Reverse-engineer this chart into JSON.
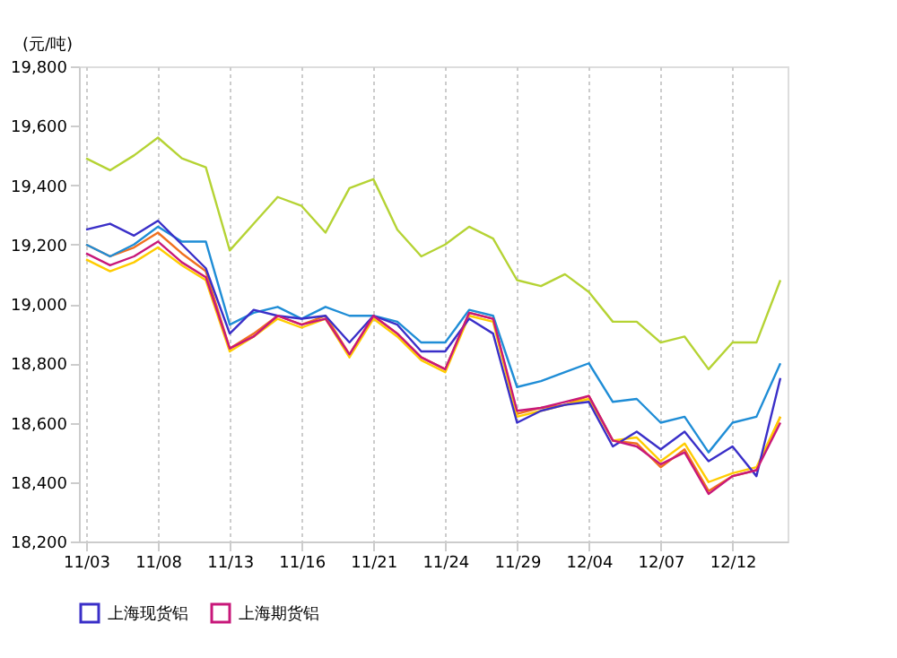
{
  "chart_data": {
    "type": "line",
    "ylabel": "(元/吨)",
    "categories": [
      "11/03",
      null,
      null,
      "11/08",
      null,
      null,
      "11/13",
      null,
      null,
      "11/16",
      null,
      null,
      "11/21",
      null,
      null,
      "11/24",
      null,
      null,
      "11/29",
      null,
      null,
      "12/04",
      null,
      null,
      "12/07",
      null,
      null,
      "12/12",
      null,
      null
    ],
    "series": [
      {
        "color": "#f07020",
        "values": [
          19200,
          19160,
          19190,
          19240,
          19170,
          19110,
          18850,
          18900,
          18960,
          18930,
          18960,
          18830,
          18960,
          18900,
          18820,
          18780,
          18970,
          18950,
          18630,
          18650,
          18660,
          18690,
          18540,
          18530,
          18450,
          18510,
          18370,
          18420,
          18440,
          18620
        ]
      },
      {
        "color": "#ffcc00",
        "values": [
          19150,
          19110,
          19140,
          19190,
          19130,
          19080,
          18840,
          18890,
          18950,
          18920,
          18950,
          18820,
          18950,
          18890,
          18810,
          18770,
          18960,
          18940,
          18620,
          18640,
          18660,
          18680,
          18540,
          18550,
          18470,
          18530,
          18400,
          18430,
          18450,
          18620
        ]
      },
      {
        "color": "#b5d334",
        "values": [
          19490,
          19450,
          19500,
          19560,
          19490,
          19460,
          19180,
          19270,
          19360,
          19330,
          19240,
          19390,
          19420,
          19250,
          19160,
          19200,
          19260,
          19220,
          19080,
          19060,
          19100,
          19040,
          18940,
          18940,
          18870,
          18890,
          18780,
          18870,
          18870,
          19080
        ]
      },
      {
        "color": "#1f8dd6",
        "values": [
          19200,
          19160,
          19200,
          19260,
          19210,
          19210,
          18930,
          18970,
          18990,
          18950,
          18990,
          18960,
          18960,
          18940,
          18870,
          18870,
          18980,
          18960,
          18720,
          18740,
          18770,
          18800,
          18670,
          18680,
          18600,
          18620,
          18500,
          18600,
          18620,
          18800
        ]
      },
      {
        "name": "上海现货铝",
        "color": "#3a2fc8",
        "values": [
          19250,
          19270,
          19230,
          19280,
          19200,
          19120,
          18900,
          18980,
          18960,
          18950,
          18960,
          18870,
          18960,
          18930,
          18840,
          18840,
          18950,
          18900,
          18600,
          18640,
          18660,
          18670,
          18520,
          18570,
          18510,
          18570,
          18470,
          18520,
          18420,
          18750
        ]
      },
      {
        "name": "上海期货铝",
        "color": "#c8187a",
        "values": [
          19170,
          19130,
          19160,
          19210,
          19140,
          19090,
          18850,
          18890,
          18960,
          18930,
          18950,
          18830,
          18960,
          18900,
          18820,
          18780,
          18970,
          18950,
          18640,
          18650,
          18670,
          18690,
          18540,
          18520,
          18460,
          18500,
          18360,
          18420,
          18440,
          18600
        ]
      }
    ],
    "ylim": [
      18200,
      19800
    ],
    "yticks": [
      {
        "value": 18200,
        "label": "18,200"
      },
      {
        "value": 18400,
        "label": "18,400"
      },
      {
        "value": 18600,
        "label": "18,600"
      },
      {
        "value": 18800,
        "label": "18,800"
      },
      {
        "value": 19000,
        "label": "19,000"
      },
      {
        "value": 19200,
        "label": "19,200"
      },
      {
        "value": 19400,
        "label": "19,400"
      },
      {
        "value": 19600,
        "label": "19,600"
      },
      {
        "value": 19800,
        "label": "19,800"
      }
    ],
    "grid": "x",
    "legend": "bottom",
    "marker": "none",
    "line_style": "solid"
  }
}
